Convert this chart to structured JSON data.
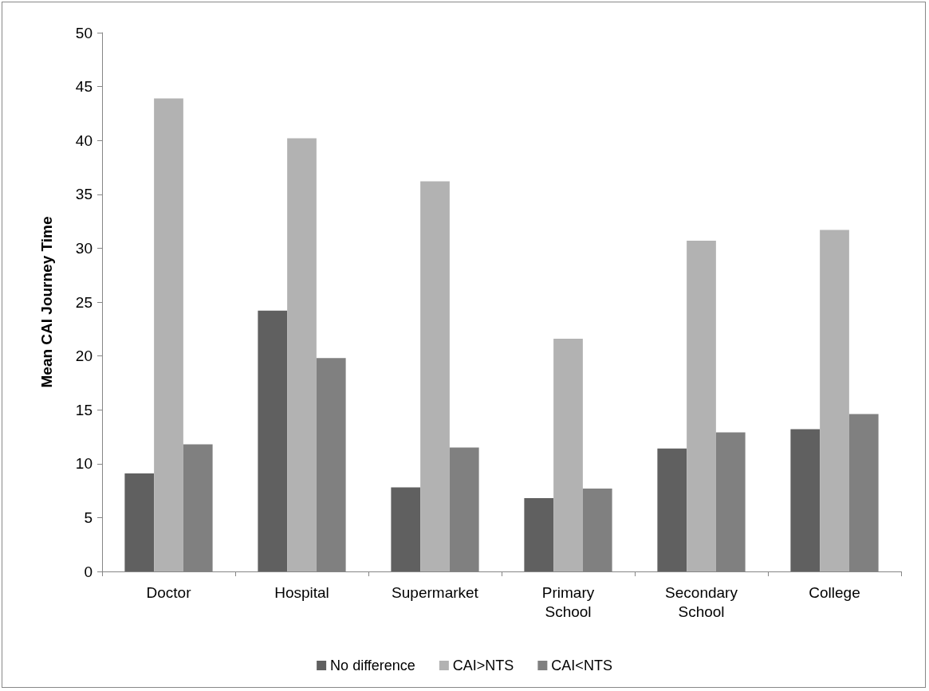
{
  "chart_data": {
    "type": "bar",
    "ylabel": "Mean CAI Journey Time",
    "categories": [
      "Doctor",
      "Hospital",
      "Supermarket",
      "Primary\nSchool",
      "Secondary\nSchool",
      "College"
    ],
    "series": [
      {
        "name": "No difference",
        "color": "#606060",
        "values": [
          9.1,
          24.2,
          7.8,
          6.8,
          11.4,
          13.2
        ]
      },
      {
        "name": "CAI>NTS",
        "color": "#b2b2b2",
        "values": [
          43.9,
          40.2,
          36.2,
          21.6,
          30.7,
          31.7
        ]
      },
      {
        "name": "CAI<NTS",
        "color": "#808080",
        "values": [
          11.8,
          19.8,
          11.5,
          7.7,
          12.9,
          14.6
        ]
      }
    ],
    "ylim": [
      0,
      50
    ],
    "yticks": [
      0,
      5,
      10,
      15,
      20,
      25,
      30,
      35,
      40,
      45,
      50
    ],
    "grid": false,
    "legend": "bottom"
  }
}
